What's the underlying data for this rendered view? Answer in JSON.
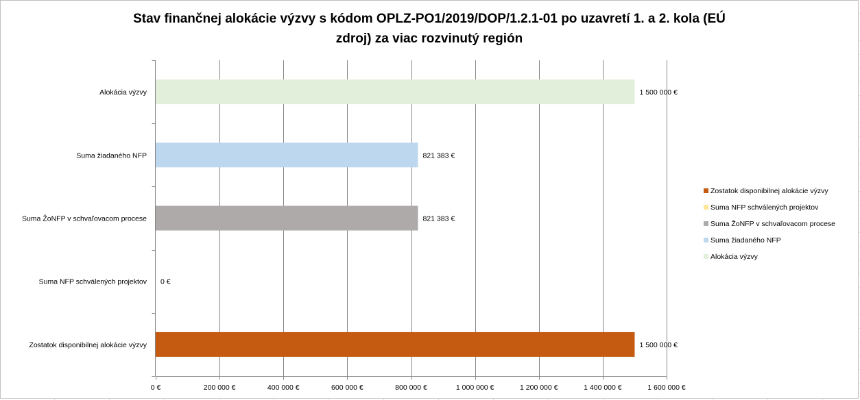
{
  "chart_data": {
    "type": "bar",
    "orientation": "horizontal",
    "title_lines": [
      "Stav finančnej alokácie výzvy s kódom OPLZ-PO1/2019/DOP/1.2.1-01 po uzavretí 1. a 2. kola (EÚ",
      "zdroj) za viac rozvinutý región"
    ],
    "categories": [
      "Alokácia výzvy",
      "Suma žiadaného NFP",
      "Suma ŽoNFP v schvaľovacom procese",
      "Suma NFP schválených projektov",
      "Zostatok disponibilnej alokácie výzvy"
    ],
    "values": [
      1500000,
      821383,
      821383,
      0,
      1500000
    ],
    "data_labels": [
      "1 500 000 €",
      "821 383 €",
      "821 383 €",
      "0 €",
      "1 500 000 €"
    ],
    "colors": [
      "#e2efda",
      "#bdd7ee",
      "#aeaaaa",
      "#ffe699",
      "#c55a11"
    ],
    "xlim": [
      0,
      1600000
    ],
    "x_ticks": [
      0,
      200000,
      400000,
      600000,
      800000,
      1000000,
      1200000,
      1400000,
      1600000
    ],
    "x_tick_labels": [
      "0 €",
      "200 000 €",
      "400 000 €",
      "600 000 €",
      "800 000 €",
      "1 000 000 €",
      "1 200 000 €",
      "1 400 000 €",
      "1 600 000 €"
    ],
    "grid": true,
    "legend_position": "right",
    "legend": [
      {
        "label": "Zostatok disponibilnej alokácie výzvy",
        "color": "#c55a11"
      },
      {
        "label": "Suma NFP schválených projektov",
        "color": "#ffe699"
      },
      {
        "label": "Suma ŽoNFP v schvaľovacom procese",
        "color": "#aeaaaa"
      },
      {
        "label": "Suma žiadaného NFP",
        "color": "#bdd7ee"
      },
      {
        "label": "Alokácia výzvy",
        "color": "#e2efda"
      }
    ]
  }
}
